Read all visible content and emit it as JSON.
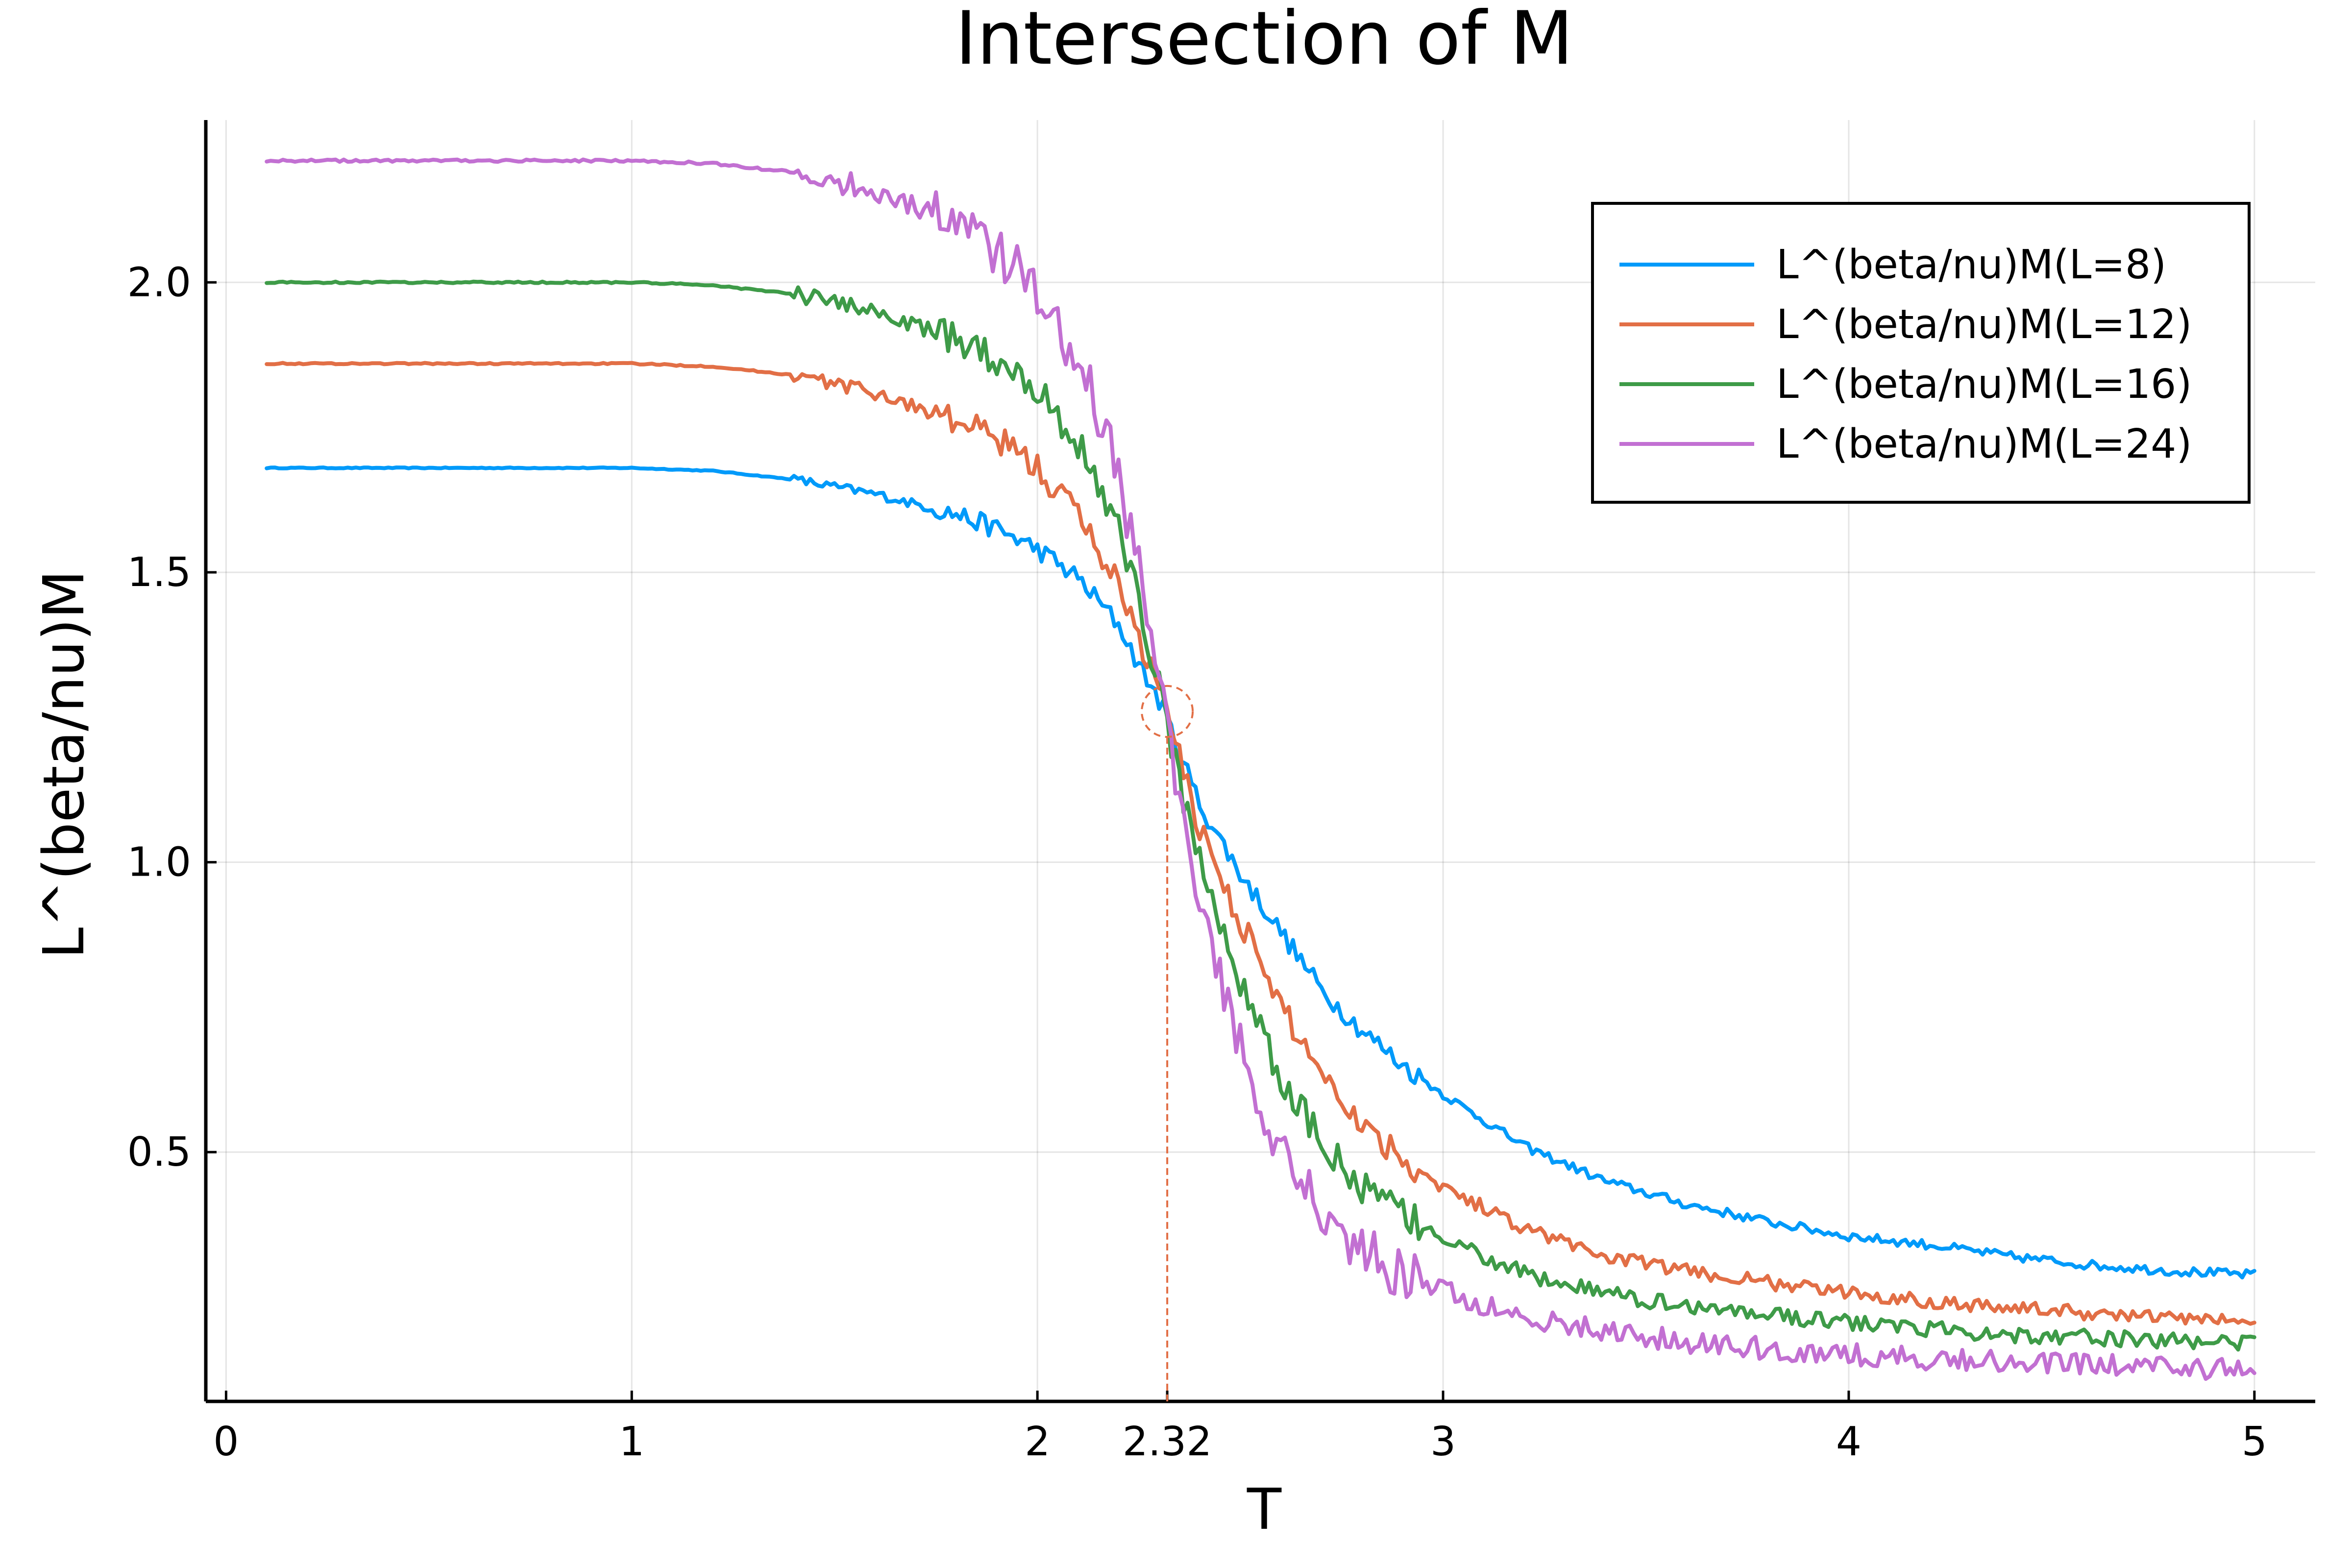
{
  "chart_data": {
    "type": "line",
    "title": "Intersection of M",
    "xlabel": "T",
    "ylabel": "L^(beta/nu)M",
    "xlim": [
      -0.05,
      5.15
    ],
    "ylim": [
      0.07,
      2.28
    ],
    "x_ticks": [
      {
        "value": 0,
        "label": "0"
      },
      {
        "value": 1,
        "label": "1"
      },
      {
        "value": 2,
        "label": "2"
      },
      {
        "value": 2.32,
        "label": "2.32"
      },
      {
        "value": 3,
        "label": "3"
      },
      {
        "value": 4,
        "label": "4"
      },
      {
        "value": 5,
        "label": "5"
      }
    ],
    "y_ticks": [
      {
        "value": 0.5,
        "label": "0.5"
      },
      {
        "value": 1.0,
        "label": "1.0"
      },
      {
        "value": 1.5,
        "label": "1.5"
      },
      {
        "value": 2.0,
        "label": "2.0"
      }
    ],
    "x_grid": [
      0,
      1,
      2,
      3,
      4,
      5
    ],
    "grid": true,
    "legend_position": "top-right",
    "annotation": {
      "x": 2.32,
      "y": 1.26,
      "label": "2.32",
      "color": "#e26f46"
    },
    "series": [
      {
        "name": "L^(beta/nu)M(L=8)",
        "color": "#009afa",
        "x": [
          0.1,
          0.5,
          1.0,
          1.2,
          1.4,
          1.6,
          1.8,
          1.9,
          2.0,
          2.1,
          2.2,
          2.25,
          2.3,
          2.35,
          2.4,
          2.5,
          2.6,
          2.7,
          2.8,
          2.9,
          3.0,
          3.2,
          3.4,
          3.6,
          3.8,
          4.0,
          4.2,
          4.4,
          4.6,
          4.8,
          5.0
        ],
        "y": [
          1.68,
          1.68,
          1.68,
          1.675,
          1.66,
          1.635,
          1.6,
          1.575,
          1.54,
          1.49,
          1.41,
          1.34,
          1.28,
          1.19,
          1.1,
          0.98,
          0.88,
          0.78,
          0.71,
          0.65,
          0.6,
          0.51,
          0.45,
          0.41,
          0.38,
          0.355,
          0.34,
          0.32,
          0.305,
          0.295,
          0.288
        ]
      },
      {
        "name": "L^(beta/nu)M(L=12)",
        "color": "#e26f46",
        "x": [
          0.1,
          0.5,
          1.0,
          1.2,
          1.4,
          1.6,
          1.8,
          1.9,
          2.0,
          2.1,
          2.2,
          2.25,
          2.3,
          2.35,
          2.4,
          2.5,
          2.6,
          2.7,
          2.8,
          2.9,
          3.0,
          3.2,
          3.4,
          3.6,
          3.8,
          4.0,
          4.2,
          4.4,
          4.6,
          4.8,
          5.0
        ],
        "y": [
          1.86,
          1.86,
          1.86,
          1.855,
          1.84,
          1.81,
          1.76,
          1.73,
          1.68,
          1.6,
          1.48,
          1.39,
          1.3,
          1.18,
          1.06,
          0.9,
          0.75,
          0.64,
          0.55,
          0.49,
          0.44,
          0.37,
          0.32,
          0.295,
          0.275,
          0.257,
          0.243,
          0.232,
          0.222,
          0.214,
          0.208
        ]
      },
      {
        "name": "L^(beta/nu)M(L=16)",
        "color": "#3e9b48",
        "x": [
          0.1,
          0.5,
          1.0,
          1.2,
          1.4,
          1.6,
          1.8,
          1.9,
          2.0,
          2.1,
          2.2,
          2.25,
          2.3,
          2.35,
          2.4,
          2.5,
          2.6,
          2.7,
          2.8,
          2.9,
          3.0,
          3.2,
          3.4,
          3.6,
          3.8,
          4.0,
          4.2,
          4.4,
          4.6,
          4.8,
          5.0
        ],
        "y": [
          2.0,
          2.0,
          2.0,
          1.995,
          1.98,
          1.95,
          1.9,
          1.87,
          1.82,
          1.72,
          1.58,
          1.45,
          1.3,
          1.14,
          1.0,
          0.8,
          0.62,
          0.52,
          0.44,
          0.39,
          0.35,
          0.29,
          0.255,
          0.235,
          0.22,
          0.205,
          0.195,
          0.186,
          0.18,
          0.174,
          0.17
        ]
      },
      {
        "name": "L^(beta/nu)M(L=24)",
        "color": "#c270d2",
        "x": [
          0.1,
          0.5,
          1.0,
          1.2,
          1.4,
          1.6,
          1.8,
          1.9,
          1.95,
          2.0,
          2.05,
          2.1,
          2.15,
          2.2,
          2.25,
          2.3,
          2.35,
          2.4,
          2.45,
          2.5,
          2.6,
          2.7,
          2.8,
          2.9,
          3.0,
          3.2,
          3.4,
          3.6,
          3.8,
          4.0,
          4.2,
          4.4,
          4.6,
          4.8,
          5.0
        ],
        "y": [
          2.21,
          2.21,
          2.21,
          2.205,
          2.19,
          2.16,
          2.1,
          2.05,
          2.02,
          1.97,
          1.92,
          1.86,
          1.78,
          1.66,
          1.52,
          1.33,
          1.1,
          0.9,
          0.8,
          0.68,
          0.5,
          0.4,
          0.33,
          0.29,
          0.26,
          0.215,
          0.19,
          0.172,
          0.16,
          0.15,
          0.143,
          0.137,
          0.132,
          0.128,
          0.125
        ]
      }
    ]
  }
}
